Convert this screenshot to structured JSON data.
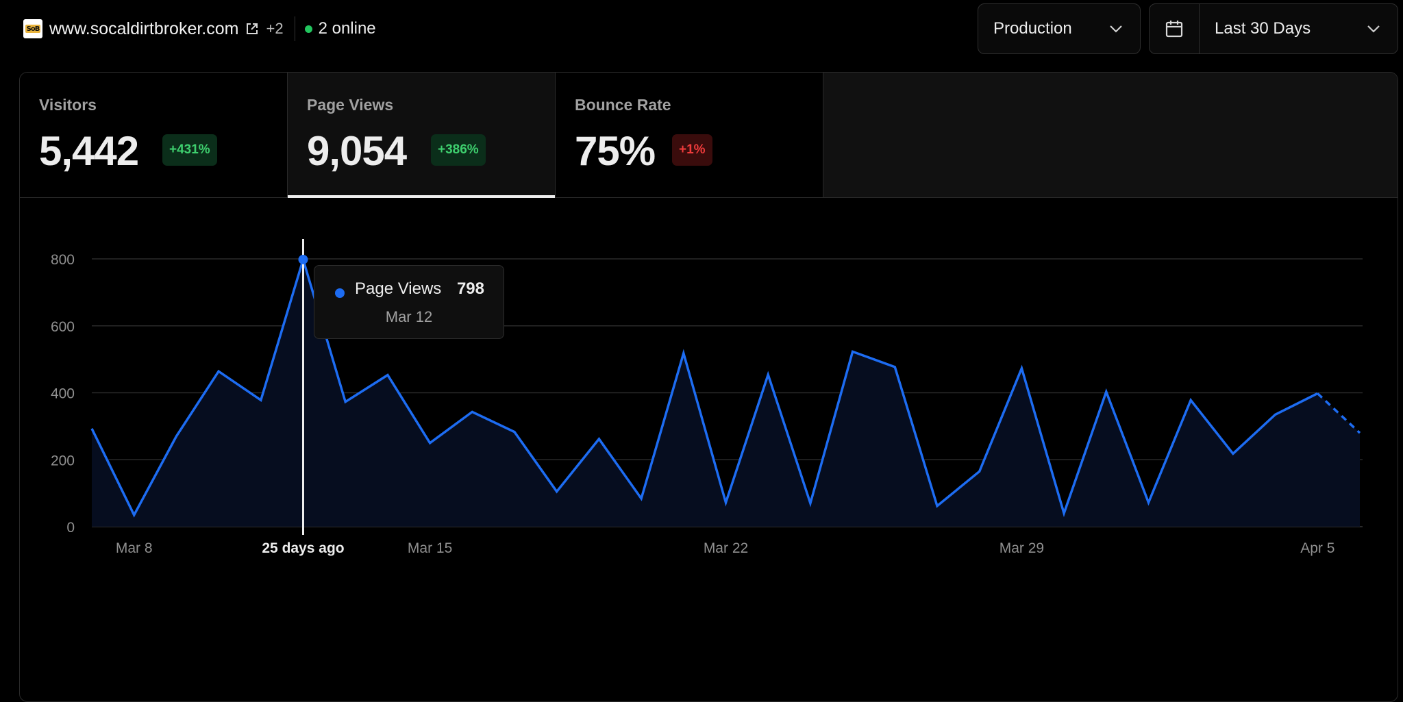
{
  "header": {
    "favicon_text": "SoB",
    "site_url": "www.socaldirtbroker.com",
    "external_link_icon": "external-link-icon",
    "extra_sites": "+2",
    "online_text": "2 online",
    "online_color": "#22c55e"
  },
  "environment_select": {
    "value": "Production",
    "icon": "chevron-down-icon"
  },
  "date_range_select": {
    "value": "Last 30 Days",
    "icon": "calendar-icon"
  },
  "metrics": [
    {
      "label": "Visitors",
      "value": "5,442",
      "change": "+431%",
      "trend": "up"
    },
    {
      "label": "Page Views",
      "value": "9,054",
      "change": "+386%",
      "trend": "up",
      "active": true
    },
    {
      "label": "Bounce Rate",
      "value": "75%",
      "change": "+1%",
      "trend": "down"
    }
  ],
  "colors": {
    "line": "#1d6cf2",
    "fill": "#060d1f",
    "positive": "#3ecf6e",
    "negative": "#ef3b3b"
  },
  "tooltip": {
    "series": "Page Views",
    "value": "798",
    "date": "Mar 12"
  },
  "chart_data": {
    "type": "area",
    "series": [
      {
        "name": "Page Views",
        "values": [
          293,
          35,
          270,
          464,
          378,
          798,
          373,
          453,
          250,
          343,
          283,
          105,
          262,
          84,
          518,
          72,
          454,
          70,
          523,
          477,
          62,
          165,
          473,
          40,
          403,
          72,
          378,
          218,
          335,
          398,
          280
        ]
      }
    ],
    "x": [
      "Mar 7",
      "Mar 8",
      "Mar 9",
      "Mar 10",
      "Mar 11",
      "Mar 12",
      "Mar 13",
      "Mar 14",
      "Mar 15",
      "Mar 16",
      "Mar 17",
      "Mar 18",
      "Mar 19",
      "Mar 20",
      "Mar 21",
      "Mar 22",
      "Mar 23",
      "Mar 24",
      "Mar 25",
      "Mar 26",
      "Mar 27",
      "Mar 28",
      "Mar 29",
      "Mar 30",
      "Mar 31",
      "Apr 1",
      "Apr 2",
      "Apr 3",
      "Apr 4",
      "Apr 5",
      "Apr 6"
    ],
    "x_tick_labels": [
      {
        "index": 1,
        "label": "Mar 8"
      },
      {
        "index": 5,
        "label": "25 days ago",
        "highlight": true
      },
      {
        "index": 8,
        "label": "Mar 15"
      },
      {
        "index": 15,
        "label": "Mar 22"
      },
      {
        "index": 22,
        "label": "Mar 29"
      },
      {
        "index": 29,
        "label": "Apr 5"
      }
    ],
    "y_ticks": [
      0,
      200,
      400,
      600,
      800
    ],
    "ylim": [
      0,
      900
    ],
    "hover_index": 5,
    "dashed_last_segment": true,
    "grid": true
  }
}
